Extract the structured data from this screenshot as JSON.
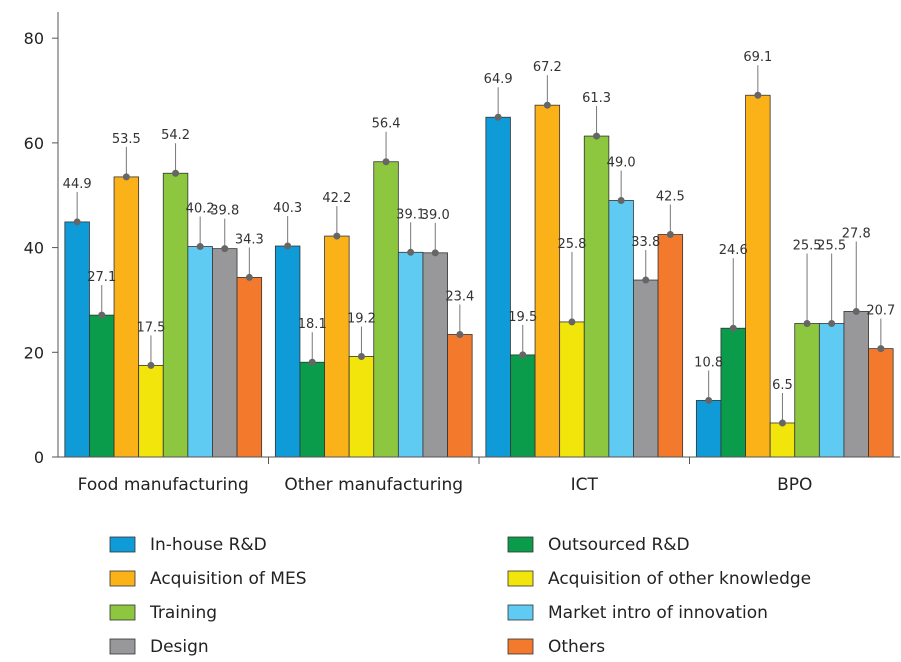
{
  "chart_data": {
    "type": "bar",
    "categories": [
      "Food manufacturing",
      "Other manufacturing",
      "ICT",
      "BPO"
    ],
    "ylim": [
      0,
      85
    ],
    "yticks": [
      0,
      20,
      40,
      60,
      80
    ],
    "legend_position": "bottom",
    "series": [
      {
        "name": "In-house R&D",
        "color": "#0f9bd7",
        "values": [
          44.9,
          40.3,
          64.9,
          10.8
        ]
      },
      {
        "name": "Outsourced R&D",
        "color": "#0a9c4a",
        "values": [
          27.1,
          18.1,
          19.5,
          24.6
        ]
      },
      {
        "name": "Acquisition of MES",
        "color": "#fbb219",
        "values": [
          53.5,
          42.2,
          67.2,
          69.1
        ]
      },
      {
        "name": "Acquisition of other knowledge",
        "color": "#f2e50c",
        "values": [
          17.5,
          19.2,
          25.8,
          6.5
        ]
      },
      {
        "name": "Training",
        "color": "#8dc63f",
        "values": [
          54.2,
          56.4,
          61.3,
          25.5
        ]
      },
      {
        "name": "Market intro of innovation",
        "color": "#5fcbf2",
        "values": [
          40.2,
          39.1,
          49.0,
          25.5
        ]
      },
      {
        "name": "Design",
        "color": "#98989b",
        "values": [
          39.8,
          39.0,
          33.8,
          27.8
        ]
      },
      {
        "name": "Others",
        "color": "#f37a2c",
        "values": [
          34.3,
          23.4,
          42.5,
          20.7
        ]
      }
    ],
    "label_format": [
      [
        "44.9",
        "40.3",
        "64.9",
        "10.8"
      ],
      [
        "27.1",
        "18.1",
        "19.5",
        "24.6"
      ],
      [
        "53.5",
        "42.2",
        "67.2",
        "69.1"
      ],
      [
        "17.5",
        "19.2",
        "25.8",
        "6.5"
      ],
      [
        "54.2",
        "56.4",
        "61.3",
        "25.5"
      ],
      [
        "40.2",
        "39.1",
        "49.0",
        "25.5"
      ],
      [
        "39.8",
        "39.0",
        "33.8",
        "27.8"
      ],
      [
        "34.3",
        "23.4",
        "42.5",
        "20.7"
      ]
    ],
    "leader_offsets": [
      [
        30,
        30,
        30,
        30
      ],
      [
        30,
        30,
        30,
        70
      ],
      [
        30,
        30,
        30,
        30
      ],
      [
        30,
        30,
        70,
        30
      ],
      [
        30,
        30,
        30,
        70
      ],
      [
        30,
        30,
        30,
        70
      ],
      [
        30,
        30,
        30,
        70
      ],
      [
        30,
        30,
        30,
        30
      ]
    ]
  }
}
